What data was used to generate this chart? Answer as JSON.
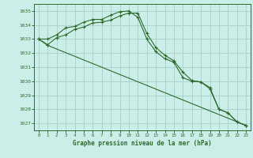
{
  "xlabel": "Graphe pression niveau de la mer (hPa)",
  "bg_color": "#cceee8",
  "grid_color": "#aad4cc",
  "line_color": "#2d6b2d",
  "xlim": [
    -0.5,
    23.5
  ],
  "ylim": [
    1026.5,
    1035.5
  ],
  "yticks": [
    1027,
    1028,
    1029,
    1030,
    1031,
    1032,
    1033,
    1034,
    1035
  ],
  "xticks": [
    0,
    1,
    2,
    3,
    4,
    5,
    6,
    7,
    8,
    9,
    10,
    11,
    12,
    13,
    14,
    15,
    16,
    17,
    18,
    19,
    20,
    21,
    22,
    23
  ],
  "series1_x": [
    0,
    1,
    2,
    3,
    4,
    5,
    6,
    7,
    8,
    9,
    10,
    11,
    12,
    13,
    14,
    15,
    16,
    17,
    18,
    19,
    20,
    21,
    22,
    23
  ],
  "series1_y": [
    1033.0,
    1033.0,
    1033.3,
    1033.8,
    1033.9,
    1034.2,
    1034.4,
    1034.4,
    1034.7,
    1034.95,
    1035.0,
    1034.55,
    1033.0,
    1032.1,
    1031.6,
    1031.35,
    1030.25,
    1030.0,
    1029.95,
    1029.55,
    1028.0,
    1027.75,
    1027.1,
    1026.85
  ],
  "series2_x": [
    0,
    1,
    2,
    3,
    4,
    5,
    6,
    7,
    8,
    9,
    10,
    11,
    12,
    13,
    14,
    15,
    16,
    17,
    18,
    19,
    20,
    21,
    22,
    23
  ],
  "series2_y": [
    1033.0,
    1032.6,
    1033.1,
    1033.3,
    1033.7,
    1033.85,
    1034.15,
    1034.2,
    1034.35,
    1034.65,
    1034.85,
    1034.85,
    1033.4,
    1032.4,
    1031.85,
    1031.45,
    1030.65,
    1030.05,
    1029.95,
    1029.45,
    1028.0,
    1027.75,
    1027.1,
    1026.85
  ],
  "series3_x": [
    0,
    1,
    23
  ],
  "series3_y": [
    1033.0,
    1032.55,
    1026.85
  ]
}
